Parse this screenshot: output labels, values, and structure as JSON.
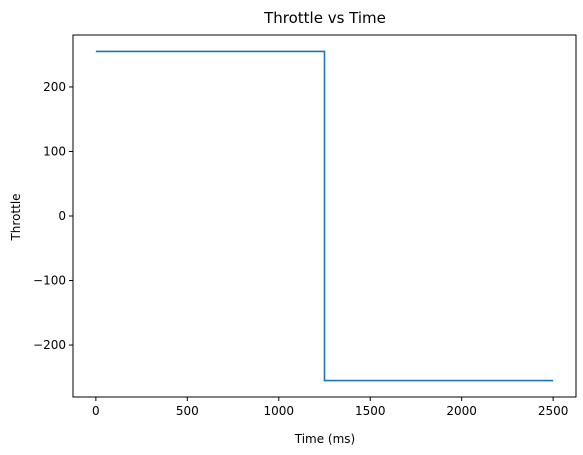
{
  "chart_data": {
    "type": "line",
    "title": "Throttle vs Time",
    "xlabel": "Time (ms)",
    "ylabel": "Throttle",
    "xlim": [
      -125,
      2625
    ],
    "ylim": [
      -280.5,
      280.5
    ],
    "xticks": [
      0,
      500,
      1000,
      1500,
      2000,
      2500
    ],
    "xtick_labels": [
      "0",
      "500",
      "1000",
      "1500",
      "2000",
      "2500"
    ],
    "yticks": [
      -200,
      -100,
      0,
      100,
      200
    ],
    "ytick_labels": [
      "−200",
      "−100",
      "0",
      "100",
      "200"
    ],
    "grid": false,
    "legend": "none",
    "series": [
      {
        "color": "#1f77b4",
        "x": [
          0,
          1250,
          1250,
          2500
        ],
        "y": [
          255,
          255,
          -255,
          -255
        ]
      }
    ]
  }
}
